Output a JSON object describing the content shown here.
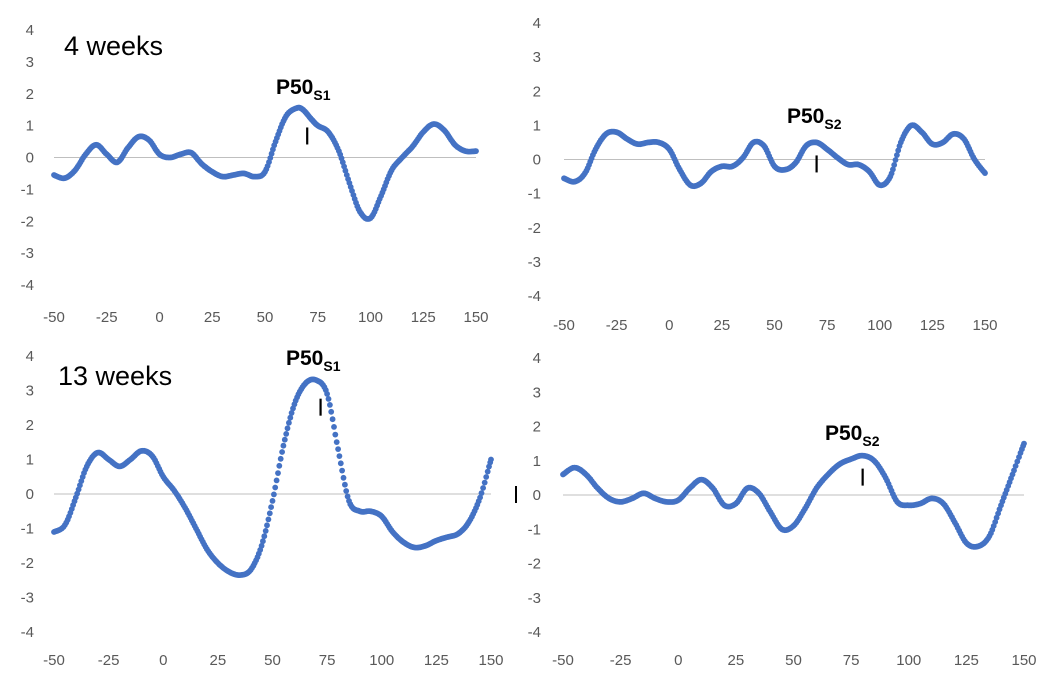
{
  "colors": {
    "series": "#4472C4",
    "axis": "#bfbfbf",
    "tick_text": "#595959",
    "marker": "#000000"
  },
  "chart_data": [
    {
      "type": "scatter",
      "panel": "top-left",
      "title": "4 weeks",
      "annotation": {
        "main": "P50",
        "sub": "S1",
        "marker_x": 70
      },
      "xlim": [
        -50,
        150
      ],
      "ylim": [
        -4,
        4
      ],
      "xticks": [
        "-50",
        "-25",
        "0",
        "25",
        "50",
        "75",
        "100",
        "125",
        "150"
      ],
      "yticks": [
        "4",
        "3",
        "2",
        "1",
        "0",
        "-1",
        "-2",
        "-3",
        "-4"
      ],
      "grid": false,
      "series": [
        {
          "x": [
            -50,
            -45,
            -40,
            -35,
            -30,
            -25,
            -20,
            -15,
            -10,
            -5,
            0,
            5,
            10,
            15,
            20,
            25,
            30,
            35,
            40,
            45,
            50,
            55,
            60,
            65,
            68,
            72,
            75,
            80,
            85,
            90,
            95,
            100,
            105,
            110,
            115,
            120,
            125,
            130,
            135,
            140,
            145,
            150
          ],
          "y": [
            -0.55,
            -0.65,
            -0.4,
            0.1,
            0.4,
            0.1,
            -0.15,
            0.3,
            0.65,
            0.55,
            0.1,
            0.0,
            0.1,
            0.15,
            -0.2,
            -0.45,
            -0.6,
            -0.55,
            -0.5,
            -0.6,
            -0.45,
            0.5,
            1.3,
            1.55,
            1.5,
            1.2,
            1.0,
            0.8,
            0.2,
            -0.8,
            -1.7,
            -1.9,
            -1.2,
            -0.4,
            0.0,
            0.35,
            0.8,
            1.05,
            0.85,
            0.4,
            0.2,
            0.2
          ]
        }
      ]
    },
    {
      "type": "scatter",
      "panel": "top-right",
      "annotation": {
        "main": "P50",
        "sub": "S2",
        "marker_x": 70
      },
      "xlim": [
        -50,
        150
      ],
      "ylim": [
        -4,
        4
      ],
      "xticks": [
        "-50",
        "-25",
        "0",
        "25",
        "50",
        "75",
        "100",
        "125",
        "150"
      ],
      "yticks": [
        "4",
        "3",
        "2",
        "1",
        "0",
        "-1",
        "-2",
        "-3",
        "-4"
      ],
      "grid": false,
      "series": [
        {
          "x": [
            -50,
            -45,
            -40,
            -35,
            -30,
            -25,
            -20,
            -15,
            -10,
            -5,
            0,
            5,
            10,
            15,
            20,
            25,
            30,
            35,
            40,
            45,
            50,
            55,
            60,
            65,
            70,
            75,
            80,
            85,
            90,
            95,
            100,
            105,
            110,
            115,
            120,
            125,
            130,
            135,
            140,
            145,
            150
          ],
          "y": [
            -0.55,
            -0.65,
            -0.4,
            0.3,
            0.75,
            0.8,
            0.6,
            0.45,
            0.5,
            0.5,
            0.3,
            -0.3,
            -0.75,
            -0.7,
            -0.35,
            -0.2,
            -0.2,
            0.05,
            0.5,
            0.4,
            -0.2,
            -0.3,
            -0.1,
            0.4,
            0.5,
            0.3,
            0.05,
            -0.15,
            -0.15,
            -0.35,
            -0.75,
            -0.5,
            0.5,
            1.0,
            0.8,
            0.45,
            0.5,
            0.75,
            0.6,
            0.0,
            -0.4
          ]
        }
      ]
    },
    {
      "type": "scatter",
      "panel": "bottom-left",
      "title": "13 weeks",
      "annotation": {
        "main": "P50",
        "sub": "S1",
        "marker_x": 72
      },
      "xlim": [
        -50,
        150
      ],
      "ylim": [
        -4,
        4
      ],
      "xticks": [
        "-50",
        "-25",
        "0",
        "25",
        "50",
        "75",
        "100",
        "125",
        "150"
      ],
      "yticks": [
        "4",
        "3",
        "2",
        "1",
        "0",
        "-1",
        "-2",
        "-3",
        "-4"
      ],
      "grid": false,
      "series": [
        {
          "x": [
            -50,
            -45,
            -40,
            -35,
            -30,
            -25,
            -20,
            -15,
            -10,
            -5,
            0,
            5,
            10,
            15,
            20,
            25,
            30,
            35,
            40,
            45,
            50,
            55,
            60,
            65,
            70,
            75,
            80,
            85,
            90,
            95,
            100,
            105,
            110,
            115,
            120,
            125,
            130,
            135,
            140,
            145,
            150
          ],
          "y": [
            -1.1,
            -0.9,
            -0.1,
            0.8,
            1.2,
            1.0,
            0.8,
            1.0,
            1.25,
            1.1,
            0.5,
            0.1,
            -0.4,
            -1.0,
            -1.6,
            -2.0,
            -2.25,
            -2.35,
            -2.2,
            -1.5,
            -0.2,
            1.4,
            2.6,
            3.2,
            3.3,
            2.9,
            1.3,
            -0.2,
            -0.5,
            -0.5,
            -0.65,
            -1.1,
            -1.4,
            -1.55,
            -1.5,
            -1.35,
            -1.25,
            -1.15,
            -0.8,
            -0.1,
            1.0
          ]
        }
      ]
    },
    {
      "type": "scatter",
      "panel": "bottom-right",
      "annotation": {
        "main": "P50",
        "sub": "S2",
        "marker_x": 80
      },
      "xlim": [
        -50,
        150
      ],
      "ylim": [
        -4,
        4
      ],
      "xticks": [
        "-50",
        "-25",
        "0",
        "25",
        "50",
        "75",
        "100",
        "125",
        "150"
      ],
      "yticks": [
        "4",
        "3",
        "2",
        "1",
        "0",
        "-1",
        "-2",
        "-3",
        "-4"
      ],
      "grid": false,
      "series": [
        {
          "x": [
            -50,
            -45,
            -40,
            -35,
            -30,
            -25,
            -20,
            -15,
            -10,
            -5,
            0,
            5,
            10,
            15,
            20,
            25,
            30,
            35,
            40,
            45,
            50,
            55,
            60,
            65,
            70,
            75,
            80,
            85,
            90,
            95,
            100,
            105,
            110,
            115,
            120,
            125,
            130,
            135,
            140,
            145,
            150
          ],
          "y": [
            0.6,
            0.8,
            0.6,
            0.2,
            -0.1,
            -0.2,
            -0.1,
            0.05,
            -0.1,
            -0.2,
            -0.15,
            0.2,
            0.45,
            0.2,
            -0.3,
            -0.25,
            0.2,
            0.05,
            -0.5,
            -1.0,
            -0.9,
            -0.4,
            0.2,
            0.6,
            0.9,
            1.05,
            1.15,
            1.0,
            0.5,
            -0.2,
            -0.3,
            -0.25,
            -0.1,
            -0.25,
            -0.8,
            -1.4,
            -1.5,
            -1.2,
            -0.3,
            0.6,
            1.5
          ]
        }
      ]
    }
  ]
}
